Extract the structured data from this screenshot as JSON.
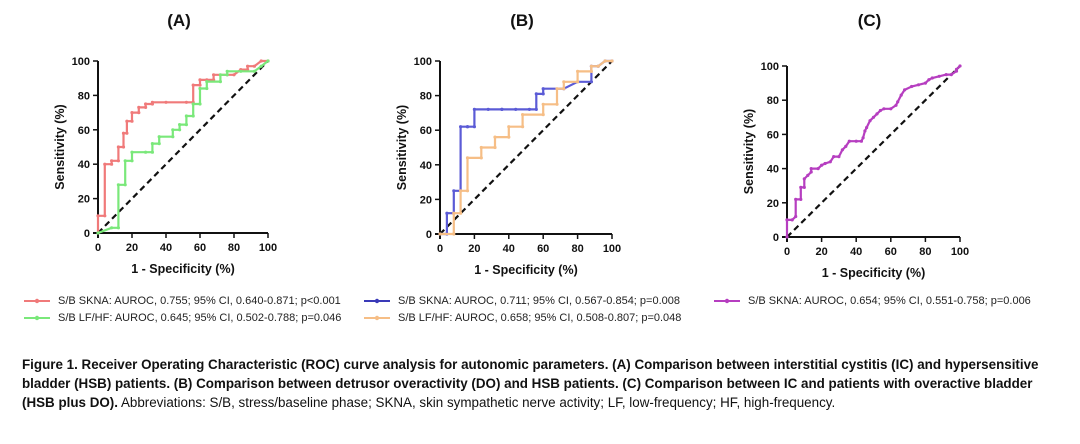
{
  "chart_data": [
    {
      "panel": "(A)",
      "type": "line",
      "xlabel": "1 - Specificity (%)",
      "ylabel": "Sensitivity (%)",
      "xlim": [
        0,
        100
      ],
      "ylim": [
        0,
        100
      ],
      "xticks": [
        "0",
        "20",
        "40",
        "60",
        "80",
        "100"
      ],
      "yticks": [
        "0",
        "20",
        "40",
        "60",
        "80",
        "100"
      ],
      "reference_line": true,
      "series": [
        {
          "name": "S/B SKNA: AUROC, 0.755; 95% CI, 0.640-0.871; p<0.001",
          "color": "#f07a7a",
          "x": [
            0,
            0,
            4,
            4,
            8,
            8,
            12,
            12,
            15,
            15,
            17,
            17,
            20,
            20,
            24,
            24,
            28,
            28,
            32,
            32,
            40,
            52,
            56,
            56,
            60,
            60,
            64,
            68,
            68,
            76,
            80,
            84,
            88,
            88,
            92,
            96,
            100
          ],
          "y": [
            0,
            10,
            10,
            40,
            40,
            42,
            42,
            50,
            50,
            58,
            58,
            65,
            65,
            70,
            70,
            73,
            73,
            75,
            75,
            76,
            76,
            76,
            76,
            86,
            86,
            89,
            89,
            89,
            92,
            92,
            92,
            95,
            95,
            97,
            97,
            100,
            100
          ]
        },
        {
          "name": "S/B LF/HF: AUROC, 0.645; 95% CI, 0.502-0.788; p=0.046",
          "color": "#7ae87a",
          "x": [
            0,
            8,
            12,
            12,
            16,
            16,
            20,
            20,
            28,
            32,
            32,
            36,
            36,
            44,
            44,
            48,
            48,
            52,
            52,
            56,
            56,
            60,
            60,
            64,
            64,
            72,
            72,
            76,
            76,
            84,
            92,
            96,
            100
          ],
          "y": [
            0,
            3,
            3,
            28,
            28,
            42,
            42,
            47,
            47,
            47,
            52,
            52,
            56,
            56,
            60,
            60,
            63,
            63,
            68,
            68,
            75,
            75,
            84,
            84,
            88,
            88,
            92,
            92,
            94,
            94,
            94,
            97,
            100
          ]
        }
      ]
    },
    {
      "panel": "(B)",
      "type": "line",
      "xlabel": "1 - Specificity (%)",
      "ylabel": "Sensitivity (%)",
      "xlim": [
        0,
        100
      ],
      "ylim": [
        0,
        100
      ],
      "xticks": [
        "0",
        "20",
        "40",
        "60",
        "80",
        "100"
      ],
      "yticks": [
        "0",
        "20",
        "40",
        "60",
        "80",
        "100"
      ],
      "reference_line": true,
      "series": [
        {
          "name": "S/B SKNA: AUROC, 0.711; 95% CI, 0.567-0.854; p=0.008",
          "color": "#5b5bd6",
          "x": [
            0,
            4,
            4,
            8,
            8,
            12,
            12,
            16,
            16,
            20,
            20,
            28,
            36,
            36,
            44,
            52,
            56,
            56,
            60,
            60,
            72,
            80,
            88,
            88,
            92,
            96,
            100
          ],
          "y": [
            0,
            0,
            12,
            12,
            25,
            25,
            62,
            62,
            62,
            62,
            72,
            72,
            72,
            72,
            72,
            72,
            72,
            81,
            81,
            84,
            84,
            88,
            88,
            97,
            97,
            100,
            100
          ]
        },
        {
          "name": "S/B LF/HF: AUROC, 0.658; 95% CI, 0.508-0.807; p=0.048",
          "color": "#f6be86",
          "x": [
            0,
            8,
            8,
            12,
            12,
            16,
            16,
            24,
            24,
            32,
            32,
            40,
            40,
            48,
            48,
            60,
            60,
            68,
            68,
            72,
            72,
            80,
            80,
            88,
            88,
            92,
            96,
            100
          ],
          "y": [
            0,
            0,
            12,
            12,
            25,
            25,
            44,
            44,
            50,
            50,
            56,
            56,
            62,
            62,
            69,
            69,
            75,
            75,
            84,
            84,
            88,
            88,
            94,
            94,
            97,
            97,
            100,
            100
          ]
        }
      ]
    },
    {
      "panel": "(C)",
      "type": "line",
      "xlabel": "1 - Specificity (%)",
      "ylabel": "Sensitivity (%)",
      "xlim": [
        0,
        100
      ],
      "ylim": [
        0,
        100
      ],
      "xticks": [
        "0",
        "20",
        "40",
        "60",
        "80",
        "100"
      ],
      "yticks": [
        "0",
        "20",
        "40",
        "60",
        "80",
        "100"
      ],
      "reference_line": true,
      "series": [
        {
          "name": "S/B SKNA: AUROC, 0.654; 95% CI, 0.551-0.758; p=0.006",
          "color": "#b63ec0",
          "x": [
            0,
            0,
            3,
            5,
            5,
            8,
            8,
            10,
            10,
            12,
            14,
            14,
            18,
            20,
            22,
            25,
            27,
            30,
            32,
            34,
            36,
            40,
            43,
            44,
            45,
            46,
            48,
            50,
            52,
            54,
            56,
            60,
            63,
            64,
            66,
            68,
            72,
            76,
            80,
            82,
            84,
            88,
            92,
            95,
            98,
            98,
            100
          ],
          "y": [
            0,
            10,
            10,
            12,
            22,
            22,
            29,
            29,
            34,
            36,
            38,
            40,
            40,
            42,
            43,
            44,
            47,
            47,
            51,
            53,
            56,
            56,
            56,
            58,
            62,
            64,
            68,
            70,
            72,
            74,
            75,
            75,
            77,
            79,
            83,
            86,
            88,
            89,
            90,
            92,
            93,
            94,
            95,
            95,
            97,
            98,
            100
          ]
        }
      ]
    }
  ],
  "legend": {
    "a": [
      "S/B SKNA: AUROC, 0.755; 95% CI, 0.640-0.871; p<0.001",
      "S/B LF/HF: AUROC, 0.645; 95% CI, 0.502-0.788; p=0.046"
    ],
    "b": [
      "S/B SKNA: AUROC, 0.711; 95% CI, 0.567-0.854; p=0.008",
      "S/B LF/HF: AUROC, 0.658; 95% CI, 0.508-0.807; p=0.048"
    ],
    "c": [
      "S/B SKNA: AUROC, 0.654; 95% CI, 0.551-0.758; p=0.006"
    ]
  },
  "caption": {
    "bold": "Figure 1. Receiver Operating Characteristic (ROC) curve analysis for autonomic parameters. (A) Comparison between interstitial cystitis (IC) and hypersensitive bladder (HSB) patients. (B) Comparison between detrusor overactivity (DO) and HSB patients. (C) Comparison between IC and patients with overactive bladder (HSB plus DO).",
    "normal": " Abbreviations: S/B, stress/baseline phase; SKNA, skin sympathetic nerve activity; LF, low-frequency; HF, high-frequency."
  }
}
